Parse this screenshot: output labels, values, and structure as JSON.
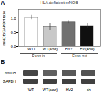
{
  "chart_data": [
    {
      "type": "bar",
      "panel": "A",
      "title": "HLA deficient mNOB",
      "ylabel": "mNOB/GAPDH ratio",
      "categories": [
        "WT1",
        "WT(aow)",
        "HV2",
        "HV(aow)"
      ],
      "values": [
        1.05,
        0.72,
        0.88,
        0.75
      ],
      "errors": [
        0.08,
        0.12,
        0.06,
        0.1
      ],
      "colors": [
        "#ffffff",
        "#c8c8c8",
        "#707070",
        "#101010"
      ],
      "groups": [
        {
          "name": "Exon in",
          "categories": [
            "WT1",
            "WT(aow)"
          ]
        },
        {
          "name": "Exon out",
          "categories": [
            "HV2",
            "HV(aow)"
          ]
        }
      ],
      "ylim": [
        0,
        1.35
      ],
      "yticks": [
        {
          "value": 0,
          "label": "0.0"
        },
        0.5,
        {
          "value": 1,
          "label": "1.0"
        }
      ],
      "grid": false
    },
    {
      "type": "blot",
      "panel": "B",
      "categories": [
        "WT",
        "WT(aow)",
        "HV2",
        "sh"
      ],
      "rows": [
        {
          "name": "mNOB",
          "colors": [
            "#464646",
            "#606060",
            "#595959",
            "#535353"
          ]
        },
        {
          "name": "GAPDH",
          "colors": [
            "#404040",
            "#404040",
            "#404040",
            "#404040"
          ]
        }
      ]
    }
  ]
}
